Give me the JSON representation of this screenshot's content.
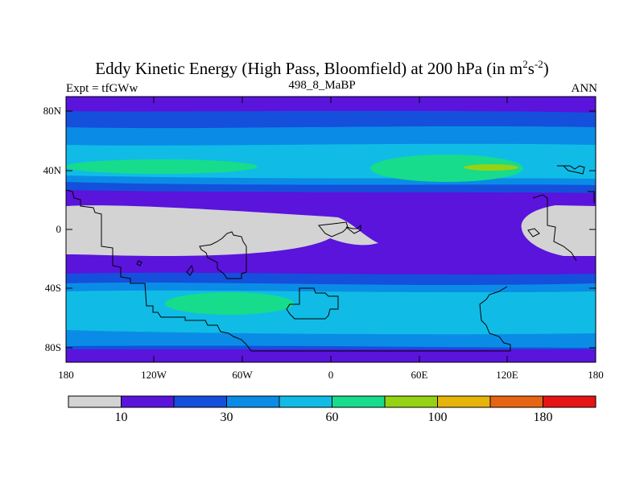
{
  "title": {
    "main": "Eddy Kinetic Energy (High Pass, Bloomfield) at 200 hPa (in m",
    "sup1": "2",
    "mid": "s",
    "sup2": "-2",
    "end": ")"
  },
  "subtitle_left": "Expt = tfGWw",
  "subtitle_center": "498_8_MaBP",
  "subtitle_right": "ANN",
  "lat_labels": [
    "80N",
    "40N",
    "0",
    "40S",
    "80S"
  ],
  "lon_labels": [
    "180",
    "120W",
    "60W",
    "0",
    "60E",
    "120E",
    "180"
  ],
  "colorbar": {
    "colors": [
      "#d3d3d3",
      "#5a14dc",
      "#1450dc",
      "#0a8ce6",
      "#10bce6",
      "#16dc8c",
      "#96d214",
      "#e6b40a",
      "#e66414",
      "#e61414"
    ],
    "labels": [
      "10",
      "30",
      "60",
      "100",
      "180"
    ]
  },
  "chart_data": {
    "type": "heatmap",
    "title": "Eddy Kinetic Energy (High Pass, Bloomfield) at 200 hPa (in m2s-2)",
    "xlabel": "",
    "ylabel": "",
    "x_range": [
      -180,
      180
    ],
    "y_range": [
      -90,
      90
    ],
    "contour_levels": [
      10,
      20,
      30,
      45,
      60,
      80,
      100,
      140,
      180
    ],
    "features": [
      "Tropical minimum (< 10) over America-Atlantic-Africa and western Pacific",
      "Northern storm track maximum 60-80 over Asia near 40N, 80-100 locally near 110E",
      "Southern storm track maximum 60-80 near 45S, 90W-30W"
    ]
  }
}
